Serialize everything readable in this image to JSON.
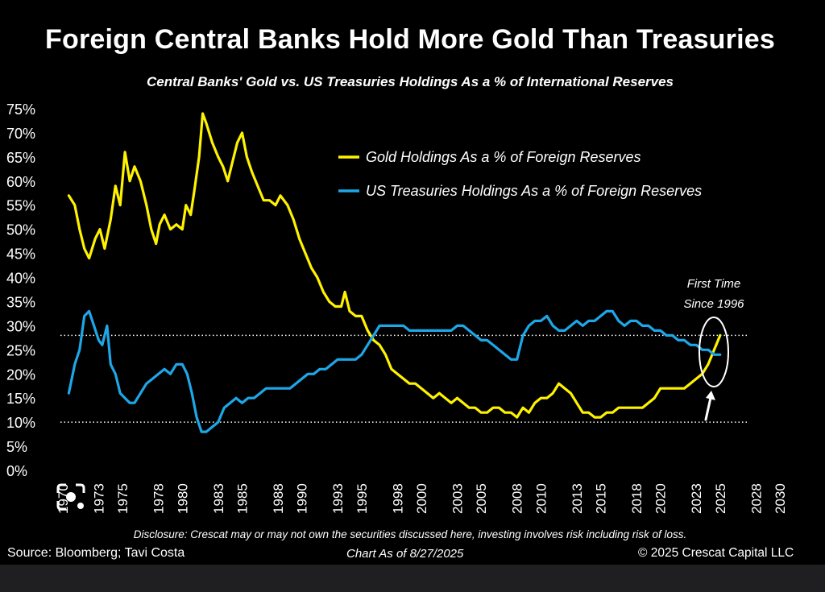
{
  "chart_data": {
    "type": "line",
    "title": "Foreign Central Banks Hold More Gold Than Treasuries",
    "subtitle": "Central Banks' Gold vs. US Treasuries Holdings As a % of International Reserves",
    "y_ticks": [
      "75%",
      "70%",
      "65%",
      "60%",
      "55%",
      "50%",
      "45%",
      "40%",
      "35%",
      "30%",
      "25%",
      "20%",
      "15%",
      "10%",
      "5%",
      "0%"
    ],
    "ylim": [
      0,
      75
    ],
    "x_ticks": [
      "1970",
      "1973",
      "1975",
      "1978",
      "1980",
      "1983",
      "1985",
      "1988",
      "1990",
      "1993",
      "1995",
      "1998",
      "2000",
      "2003",
      "2005",
      "2008",
      "2010",
      "2013",
      "2015",
      "2018",
      "2020",
      "2023",
      "2025",
      "2028",
      "2030"
    ],
    "xlim": [
      1970,
      2030
    ],
    "reference_lines": [
      28,
      10
    ],
    "legend_position": "top-right",
    "annotation": "First Time Since 1996",
    "series": [
      {
        "name": "Gold Holdings As a % of Foreign Reserves",
        "color": "#FFF200",
        "points": [
          [
            1970.5,
            57
          ],
          [
            1971.0,
            55
          ],
          [
            1971.4,
            50
          ],
          [
            1971.8,
            46
          ],
          [
            1972.2,
            44
          ],
          [
            1972.7,
            48
          ],
          [
            1973.1,
            50
          ],
          [
            1973.5,
            46
          ],
          [
            1974.0,
            52
          ],
          [
            1974.4,
            59
          ],
          [
            1974.8,
            55
          ],
          [
            1975.2,
            66
          ],
          [
            1975.6,
            60
          ],
          [
            1976.0,
            63
          ],
          [
            1976.5,
            60
          ],
          [
            1977.0,
            55
          ],
          [
            1977.4,
            50
          ],
          [
            1977.8,
            47
          ],
          [
            1978.1,
            51
          ],
          [
            1978.5,
            53
          ],
          [
            1979.0,
            50
          ],
          [
            1979.5,
            51
          ],
          [
            1980.0,
            50
          ],
          [
            1980.3,
            55
          ],
          [
            1980.7,
            53
          ],
          [
            1981.0,
            58
          ],
          [
            1981.4,
            65
          ],
          [
            1981.7,
            74
          ],
          [
            1982.0,
            72
          ],
          [
            1982.5,
            68
          ],
          [
            1983.0,
            65
          ],
          [
            1983.4,
            63
          ],
          [
            1983.8,
            60
          ],
          [
            1984.2,
            64
          ],
          [
            1984.6,
            68
          ],
          [
            1985.0,
            70
          ],
          [
            1985.4,
            65
          ],
          [
            1985.8,
            62
          ],
          [
            1986.3,
            59
          ],
          [
            1986.8,
            56
          ],
          [
            1987.3,
            56
          ],
          [
            1987.8,
            55
          ],
          [
            1988.2,
            57
          ],
          [
            1988.8,
            55
          ],
          [
            1989.3,
            52
          ],
          [
            1989.8,
            48
          ],
          [
            1990.3,
            45
          ],
          [
            1990.8,
            42
          ],
          [
            1991.3,
            40
          ],
          [
            1991.8,
            37
          ],
          [
            1992.3,
            35
          ],
          [
            1992.8,
            34
          ],
          [
            1993.3,
            34
          ],
          [
            1993.6,
            37
          ],
          [
            1994.0,
            33
          ],
          [
            1994.5,
            32
          ],
          [
            1995.0,
            32
          ],
          [
            1995.5,
            29
          ],
          [
            1996.0,
            27
          ],
          [
            1996.5,
            26
          ],
          [
            1997.0,
            24
          ],
          [
            1997.5,
            21
          ],
          [
            1998.0,
            20
          ],
          [
            1998.5,
            19
          ],
          [
            1999.0,
            18
          ],
          [
            1999.5,
            18
          ],
          [
            2000.0,
            17
          ],
          [
            2000.5,
            16
          ],
          [
            2001.0,
            15
          ],
          [
            2001.5,
            16
          ],
          [
            2002.0,
            15
          ],
          [
            2002.5,
            14
          ],
          [
            2003.0,
            15
          ],
          [
            2003.5,
            14
          ],
          [
            2004.0,
            13
          ],
          [
            2004.5,
            13
          ],
          [
            2005.0,
            12
          ],
          [
            2005.5,
            12
          ],
          [
            2006.0,
            13
          ],
          [
            2006.5,
            13
          ],
          [
            2007.0,
            12
          ],
          [
            2007.5,
            12
          ],
          [
            2008.0,
            11
          ],
          [
            2008.5,
            13
          ],
          [
            2009.0,
            12
          ],
          [
            2009.5,
            14
          ],
          [
            2010.0,
            15
          ],
          [
            2010.5,
            15
          ],
          [
            2011.0,
            16
          ],
          [
            2011.5,
            18
          ],
          [
            2012.0,
            17
          ],
          [
            2012.5,
            16
          ],
          [
            2013.0,
            14
          ],
          [
            2013.5,
            12
          ],
          [
            2014.0,
            12
          ],
          [
            2014.5,
            11
          ],
          [
            2015.0,
            11
          ],
          [
            2015.5,
            12
          ],
          [
            2016.0,
            12
          ],
          [
            2016.5,
            13
          ],
          [
            2017.0,
            13
          ],
          [
            2017.5,
            13
          ],
          [
            2018.0,
            13
          ],
          [
            2018.5,
            13
          ],
          [
            2019.0,
            14
          ],
          [
            2019.5,
            15
          ],
          [
            2020.0,
            17
          ],
          [
            2020.5,
            17
          ],
          [
            2021.0,
            17
          ],
          [
            2021.5,
            17
          ],
          [
            2022.0,
            17
          ],
          [
            2022.5,
            18
          ],
          [
            2023.0,
            19
          ],
          [
            2023.5,
            20
          ],
          [
            2024.0,
            22
          ],
          [
            2024.5,
            25
          ],
          [
            2025.0,
            28
          ]
        ]
      },
      {
        "name": "US Treasuries Holdings As a % of Foreign Reserves",
        "color": "#1EA7E8",
        "points": [
          [
            1970.5,
            16
          ],
          [
            1971.0,
            22
          ],
          [
            1971.4,
            25
          ],
          [
            1971.8,
            32
          ],
          [
            1972.2,
            33
          ],
          [
            1972.6,
            30
          ],
          [
            1973.0,
            27
          ],
          [
            1973.3,
            26
          ],
          [
            1973.7,
            30
          ],
          [
            1974.0,
            22
          ],
          [
            1974.4,
            20
          ],
          [
            1974.8,
            16
          ],
          [
            1975.2,
            15
          ],
          [
            1975.6,
            14
          ],
          [
            1976.0,
            14
          ],
          [
            1976.5,
            16
          ],
          [
            1977.0,
            18
          ],
          [
            1977.5,
            19
          ],
          [
            1978.0,
            20
          ],
          [
            1978.5,
            21
          ],
          [
            1979.0,
            20
          ],
          [
            1979.5,
            22
          ],
          [
            1980.0,
            22
          ],
          [
            1980.4,
            20
          ],
          [
            1980.8,
            16
          ],
          [
            1981.2,
            11
          ],
          [
            1981.6,
            8
          ],
          [
            1982.0,
            8
          ],
          [
            1982.5,
            9
          ],
          [
            1983.0,
            10
          ],
          [
            1983.5,
            13
          ],
          [
            1984.0,
            14
          ],
          [
            1984.5,
            15
          ],
          [
            1985.0,
            14
          ],
          [
            1985.5,
            15
          ],
          [
            1986.0,
            15
          ],
          [
            1986.5,
            16
          ],
          [
            1987.0,
            17
          ],
          [
            1987.5,
            17
          ],
          [
            1988.0,
            17
          ],
          [
            1988.5,
            17
          ],
          [
            1989.0,
            17
          ],
          [
            1989.5,
            18
          ],
          [
            1990.0,
            19
          ],
          [
            1990.5,
            20
          ],
          [
            1991.0,
            20
          ],
          [
            1991.5,
            21
          ],
          [
            1992.0,
            21
          ],
          [
            1992.5,
            22
          ],
          [
            1993.0,
            23
          ],
          [
            1993.5,
            23
          ],
          [
            1994.0,
            23
          ],
          [
            1994.5,
            23
          ],
          [
            1995.0,
            24
          ],
          [
            1995.5,
            26
          ],
          [
            1996.0,
            28
          ],
          [
            1996.5,
            30
          ],
          [
            1997.0,
            30
          ],
          [
            1997.5,
            30
          ],
          [
            1998.0,
            30
          ],
          [
            1998.5,
            30
          ],
          [
            1999.0,
            29
          ],
          [
            1999.5,
            29
          ],
          [
            2000.0,
            29
          ],
          [
            2000.5,
            29
          ],
          [
            2001.0,
            29
          ],
          [
            2001.5,
            29
          ],
          [
            2002.0,
            29
          ],
          [
            2002.5,
            29
          ],
          [
            2003.0,
            30
          ],
          [
            2003.5,
            30
          ],
          [
            2004.0,
            29
          ],
          [
            2004.5,
            28
          ],
          [
            2005.0,
            27
          ],
          [
            2005.5,
            27
          ],
          [
            2006.0,
            26
          ],
          [
            2006.5,
            25
          ],
          [
            2007.0,
            24
          ],
          [
            2007.5,
            23
          ],
          [
            2008.0,
            23
          ],
          [
            2008.5,
            28
          ],
          [
            2009.0,
            30
          ],
          [
            2009.5,
            31
          ],
          [
            2010.0,
            31
          ],
          [
            2010.5,
            32
          ],
          [
            2011.0,
            30
          ],
          [
            2011.5,
            29
          ],
          [
            2012.0,
            29
          ],
          [
            2012.5,
            30
          ],
          [
            2013.0,
            31
          ],
          [
            2013.5,
            30
          ],
          [
            2014.0,
            31
          ],
          [
            2014.5,
            31
          ],
          [
            2015.0,
            32
          ],
          [
            2015.5,
            33
          ],
          [
            2016.0,
            33
          ],
          [
            2016.5,
            31
          ],
          [
            2017.0,
            30
          ],
          [
            2017.5,
            31
          ],
          [
            2018.0,
            31
          ],
          [
            2018.5,
            30
          ],
          [
            2019.0,
            30
          ],
          [
            2019.5,
            29
          ],
          [
            2020.0,
            29
          ],
          [
            2020.5,
            28
          ],
          [
            2021.0,
            28
          ],
          [
            2021.5,
            27
          ],
          [
            2022.0,
            27
          ],
          [
            2022.5,
            26
          ],
          [
            2023.0,
            26
          ],
          [
            2023.5,
            25
          ],
          [
            2024.0,
            25
          ],
          [
            2024.5,
            24
          ],
          [
            2025.0,
            24
          ]
        ]
      }
    ]
  },
  "footer": {
    "disclosure": "Disclosure: Crescat may or may not own the securities discussed here, investing involves risk including risk of loss.",
    "source": "Source: Bloomberg; Tavi Costa",
    "as_of": "Chart As of 8/27/2025",
    "copyright": "© 2025 Crescat Capital LLC"
  },
  "overlay": {
    "lens_icon": "google-lens-icon"
  }
}
